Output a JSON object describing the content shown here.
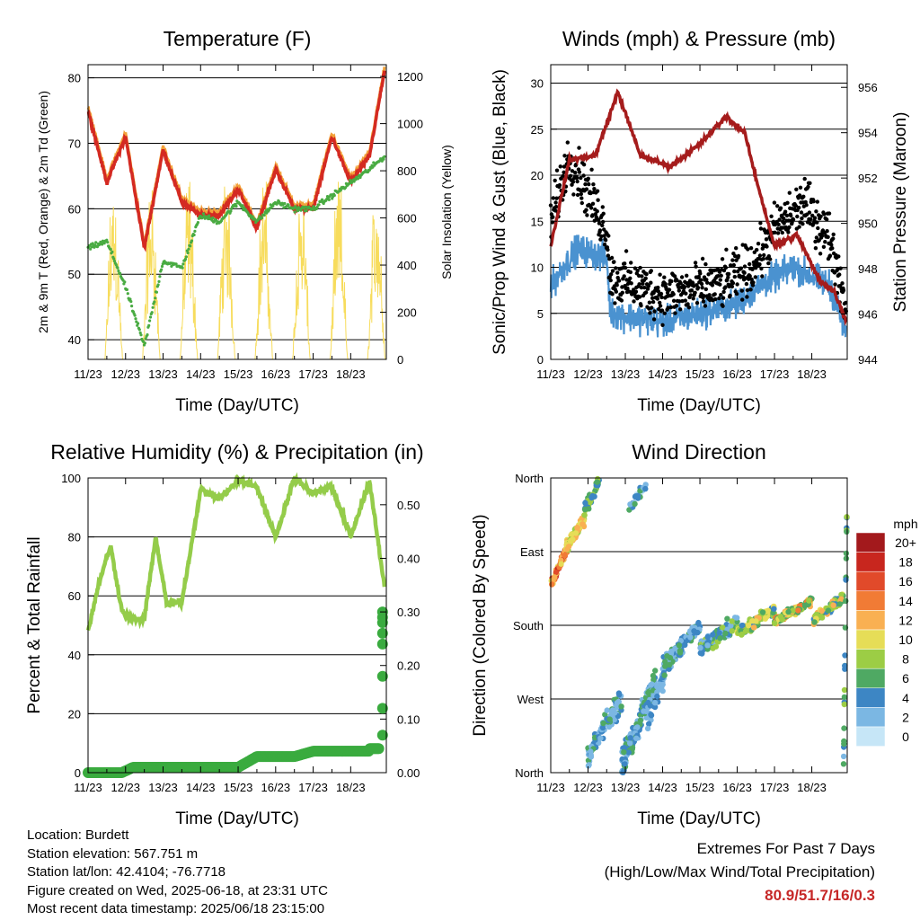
{
  "charts": [
    {
      "id": "temperature",
      "type": "line",
      "title": "Temperature (F)",
      "xlabel": "Time (Day/UTC)",
      "ylabel": "2m & 9m T (Red, Orange) & 2m Td (Green)",
      "ylabel_right": "Solar Insolation (Yellow)",
      "x_ticks": [
        "11/23",
        "12/23",
        "13/23",
        "14/23",
        "15/23",
        "16/23",
        "17/23",
        "18/23"
      ],
      "y_ticks": [
        "40",
        "50",
        "60",
        "70",
        "80"
      ],
      "y_right_ticks": [
        "0",
        "200",
        "400",
        "600",
        "800",
        "1000",
        "1200"
      ]
    },
    {
      "id": "winds",
      "type": "scatter",
      "title": "Winds (mph) & Pressure (mb)",
      "xlabel": "Time (Day/UTC)",
      "ylabel": "Sonic/Prop Wind & Gust (Blue, Black)",
      "ylabel_right": "Station Pressure (Maroon)",
      "x_ticks": [
        "11/23",
        "12/23",
        "13/23",
        "14/23",
        "15/23",
        "16/23",
        "17/23",
        "18/23"
      ],
      "y_ticks": [
        "0",
        "5",
        "10",
        "15",
        "20",
        "25",
        "30"
      ],
      "y_right_ticks": [
        "944",
        "946",
        "948",
        "950",
        "952",
        "954",
        "956"
      ]
    },
    {
      "id": "humidity",
      "type": "line",
      "title": "Relative Humidity (%) & Precipitation (in)",
      "xlabel": "Time (Day/UTC)",
      "ylabel": "Percent & Total Rainfall",
      "x_ticks": [
        "11/23",
        "12/23",
        "13/23",
        "14/23",
        "15/23",
        "16/23",
        "17/23",
        "18/23"
      ],
      "y_ticks": [
        "0",
        "20",
        "40",
        "60",
        "80",
        "100"
      ],
      "y_right_ticks": [
        "0.00",
        "0.10",
        "0.20",
        "0.30",
        "0.40",
        "0.50"
      ]
    },
    {
      "id": "direction",
      "type": "scatter",
      "title": "Wind Direction",
      "xlabel": "Time (Day/UTC)",
      "ylabel": "Direction (Colored By Speed)",
      "x_ticks": [
        "11/23",
        "12/23",
        "13/23",
        "14/23",
        "15/23",
        "16/23",
        "17/23",
        "18/23"
      ],
      "y_ticks": [
        "North",
        "East",
        "South",
        "West",
        "North"
      ],
      "legend_title": "mph",
      "legend_labels": [
        "20+",
        "18",
        "16",
        "14",
        "12",
        "10",
        "8",
        "6",
        "4",
        "2",
        "0"
      ],
      "legend_colors": [
        "#a3191c",
        "#c8261e",
        "#e14a2a",
        "#f17b35",
        "#f9b052",
        "#e6dd57",
        "#9ccd45",
        "#4fa963",
        "#3d86c4",
        "#7bb7e3",
        "#c6e6f7"
      ]
    }
  ],
  "chart_data": [
    {
      "type": "line",
      "title": "Temperature (F)",
      "x": [
        0,
        0.5,
        1,
        1.5,
        2,
        2.5,
        3,
        3.5,
        4,
        4.5,
        5,
        5.5,
        6,
        6.5,
        7,
        7.5,
        7.9
      ],
      "series": [
        {
          "values": [
            75,
            64,
            71,
            54,
            69,
            61,
            59,
            59,
            63,
            57,
            66,
            60,
            60,
            71,
            64,
            68,
            81
          ]
        },
        {
          "values": [
            54,
            55,
            48,
            39,
            52,
            51,
            59,
            58,
            61,
            58,
            61,
            60,
            60,
            62,
            64,
            66,
            68
          ]
        }
      ],
      "ylim": [
        37,
        82
      ],
      "ylim_right": [
        0,
        1250
      ]
    },
    {
      "type": "scatter",
      "title": "Winds (mph) & Pressure (mb)",
      "ylim": [
        0,
        32
      ],
      "ylim_right": [
        944,
        957
      ]
    },
    {
      "type": "line",
      "title": "Relative Humidity (%) & Precipitation (in)",
      "x": [
        0,
        0.3,
        0.6,
        0.9,
        1.2,
        1.5,
        1.8,
        2.1,
        2.5,
        3,
        3.5,
        4,
        4.5,
        5,
        5.5,
        6,
        6.5,
        7,
        7.5,
        7.9
      ],
      "series": [
        {
          "values": [
            48,
            65,
            77,
            55,
            52,
            52,
            80,
            57,
            58,
            96,
            93,
            99,
            97,
            80,
            100,
            95,
            97,
            80,
            99,
            63
          ]
        },
        {
          "values": [
            0,
            0,
            0,
            0,
            0.01,
            0.01,
            0.01,
            0.01,
            0.01,
            0.01,
            0.01,
            0.01,
            0.03,
            0.03,
            0.03,
            0.04,
            0.04,
            0.04,
            0.04,
            0.3
          ]
        }
      ],
      "ylim": [
        0,
        100
      ],
      "ylim_right": [
        0,
        0.55
      ]
    },
    {
      "type": "scatter",
      "title": "Wind Direction",
      "ylim": [
        0,
        360
      ]
    }
  ],
  "station": {
    "location": "Location: Burdett",
    "elevation": "Station elevation: 567.751 m",
    "latlon": "Station lat/lon: 42.4104; -76.7718",
    "created": "Figure created on Wed, 2025-06-18, at 23:31 UTC",
    "recent": "Most recent data timestamp: 2025/06/18 23:15:00"
  },
  "extremes": {
    "heading": "Extremes For Past 7 Days",
    "subheading": "(High/Low/Max Wind/Total Precipitation)",
    "values": "80.9/51.7/16/0.3"
  },
  "colors": {
    "temperature_2m": "#d42a22",
    "temperature_9m": "#f3a23a",
    "dewpoint": "#49ab42",
    "solar": "#f7dc5c",
    "wind": "#4a92d0",
    "gust": "#000000",
    "pressure": "#a51c1c",
    "humidity": "#94cc4a",
    "precipitation": "#3aab3f"
  }
}
